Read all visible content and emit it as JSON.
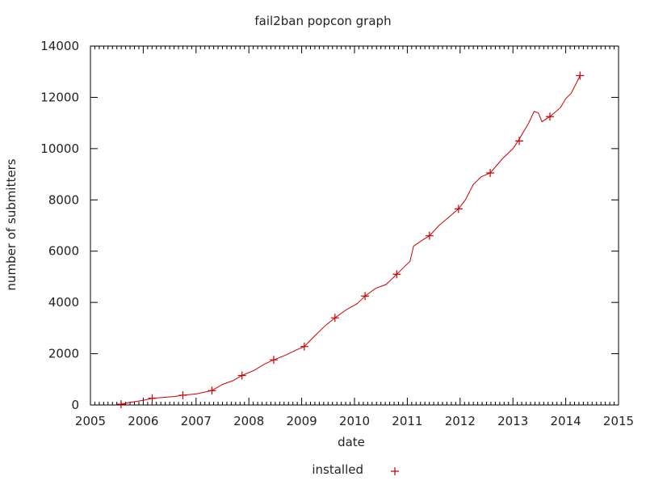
{
  "chart_data": {
    "type": "line",
    "title": "fail2ban popcon graph",
    "xlabel": "date",
    "ylabel": "number of submitters",
    "xlim": [
      2005,
      2015
    ],
    "ylim": [
      0,
      14000
    ],
    "x_ticks": [
      "2005",
      "2006",
      "2007",
      "2008",
      "2009",
      "2010",
      "2011",
      "2012",
      "2013",
      "2014",
      "2015"
    ],
    "y_ticks": [
      "0",
      "2000",
      "4000",
      "6000",
      "8000",
      "10000",
      "12000",
      "14000"
    ],
    "grid": false,
    "legend_position": "bottom-center",
    "series": [
      {
        "name": "installed",
        "color": "#cc0000",
        "line": {
          "x": [
            2005.58,
            2005.75,
            2006.0,
            2006.17,
            2006.4,
            2006.6,
            2006.75,
            2007.0,
            2007.3,
            2007.5,
            2007.7,
            2007.87,
            2008.1,
            2008.3,
            2008.47,
            2008.7,
            2008.9,
            2009.05,
            2009.25,
            2009.45,
            2009.63,
            2009.85,
            2010.05,
            2010.2,
            2010.4,
            2010.6,
            2010.8,
            2010.95,
            2011.05,
            2011.12,
            2011.3,
            2011.42,
            2011.6,
            2011.8,
            2011.97,
            2012.1,
            2012.25,
            2012.4,
            2012.57,
            2012.8,
            2013.0,
            2013.1,
            2013.3,
            2013.4,
            2013.48,
            2013.55,
            2013.7,
            2013.9,
            2014.0,
            2014.1,
            2014.2,
            2014.27
          ],
          "y": [
            30,
            100,
            180,
            260,
            300,
            330,
            380,
            430,
            560,
            800,
            950,
            1150,
            1350,
            1600,
            1760,
            1950,
            2150,
            2280,
            2700,
            3100,
            3400,
            3720,
            3950,
            4250,
            4550,
            4700,
            5100,
            5400,
            5600,
            6200,
            6450,
            6600,
            7000,
            7350,
            7650,
            8000,
            8600,
            8900,
            9050,
            9600,
            10000,
            10300,
            11000,
            11450,
            11400,
            11050,
            11250,
            11600,
            11950,
            12150,
            12550,
            12850
          ]
        },
        "points": {
          "x": [
            2005.58,
            2006.17,
            2006.75,
            2007.3,
            2007.87,
            2008.47,
            2009.05,
            2009.63,
            2010.2,
            2010.8,
            2011.42,
            2011.97,
            2012.57,
            2013.12,
            2013.7,
            2014.27
          ],
          "y": [
            30,
            260,
            380,
            560,
            1150,
            1760,
            2280,
            3400,
            4250,
            5100,
            6600,
            7650,
            9050,
            10300,
            11250,
            12850
          ]
        }
      }
    ]
  }
}
